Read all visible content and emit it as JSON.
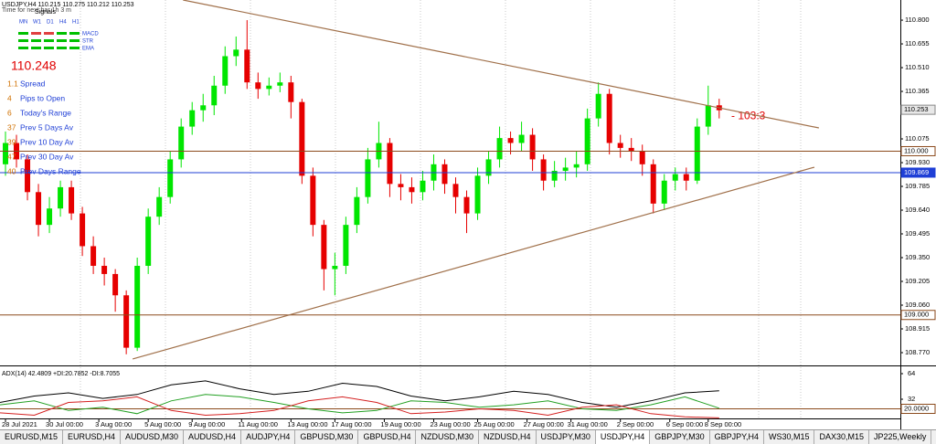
{
  "chart_data": [
    {
      "type": "candlestick",
      "title": "USDJPY,H4 110.215 110.275 110.212 110.253",
      "subtitle": "Time for next bar 1h 3 m",
      "candles": [
        [
          109.92,
          110.12,
          109.85,
          110.05
        ],
        [
          110.05,
          110.1,
          109.9,
          109.95
        ],
        [
          109.95,
          109.98,
          109.7,
          109.75
        ],
        [
          109.75,
          109.8,
          109.48,
          109.55
        ],
        [
          109.55,
          109.72,
          109.5,
          109.65
        ],
        [
          109.65,
          109.82,
          109.6,
          109.78
        ],
        [
          109.78,
          109.82,
          109.58,
          109.62
        ],
        [
          109.62,
          109.66,
          109.36,
          109.42
        ],
        [
          109.42,
          109.48,
          109.25,
          109.3
        ],
        [
          109.3,
          109.35,
          109.18,
          109.25
        ],
        [
          109.25,
          109.28,
          109.02,
          109.12
        ],
        [
          109.12,
          109.15,
          108.76,
          108.8
        ],
        [
          108.8,
          109.35,
          108.78,
          109.3
        ],
        [
          109.3,
          109.65,
          109.25,
          109.6
        ],
        [
          109.6,
          109.78,
          109.55,
          109.72
        ],
        [
          109.72,
          110.0,
          109.68,
          109.95
        ],
        [
          109.95,
          110.2,
          109.9,
          110.15
        ],
        [
          110.15,
          110.3,
          110.1,
          110.25
        ],
        [
          110.25,
          110.35,
          110.18,
          110.28
        ],
        [
          110.28,
          110.46,
          110.22,
          110.4
        ],
        [
          110.4,
          110.64,
          110.35,
          110.58
        ],
        [
          110.58,
          110.7,
          110.52,
          110.62
        ],
        [
          110.62,
          110.8,
          110.38,
          110.42
        ],
        [
          110.42,
          110.48,
          110.32,
          110.38
        ],
        [
          110.38,
          110.45,
          110.34,
          110.4
        ],
        [
          110.4,
          110.48,
          110.36,
          110.42
        ],
        [
          110.42,
          110.46,
          110.2,
          110.3
        ],
        [
          110.3,
          110.32,
          109.8,
          109.85
        ],
        [
          109.85,
          109.9,
          109.48,
          109.55
        ],
        [
          109.55,
          109.58,
          109.15,
          109.28
        ],
        [
          109.28,
          109.38,
          109.12,
          109.3
        ],
        [
          109.3,
          109.6,
          109.25,
          109.55
        ],
        [
          109.55,
          109.78,
          109.5,
          109.72
        ],
        [
          109.72,
          110.02,
          109.68,
          109.95
        ],
        [
          109.95,
          110.18,
          109.9,
          110.05
        ],
        [
          110.05,
          110.08,
          109.72,
          109.8
        ],
        [
          109.8,
          109.86,
          109.7,
          109.78
        ],
        [
          109.78,
          109.84,
          109.68,
          109.75
        ],
        [
          109.75,
          109.88,
          109.7,
          109.82
        ],
        [
          109.82,
          109.98,
          109.76,
          109.92
        ],
        [
          109.92,
          109.95,
          109.74,
          109.8
        ],
        [
          109.8,
          109.84,
          109.62,
          109.72
        ],
        [
          109.72,
          109.76,
          109.5,
          109.62
        ],
        [
          109.62,
          109.9,
          109.58,
          109.85
        ],
        [
          109.85,
          110.0,
          109.8,
          109.95
        ],
        [
          109.95,
          110.15,
          109.9,
          110.08
        ],
        [
          110.08,
          110.12,
          109.98,
          110.05
        ],
        [
          110.05,
          110.18,
          110.0,
          110.1
        ],
        [
          110.1,
          110.14,
          109.88,
          109.95
        ],
        [
          109.95,
          109.98,
          109.76,
          109.82
        ],
        [
          109.82,
          109.94,
          109.78,
          109.88
        ],
        [
          109.88,
          109.96,
          109.82,
          109.9
        ],
        [
          109.9,
          110.0,
          109.84,
          109.92
        ],
        [
          109.92,
          110.26,
          109.88,
          110.2
        ],
        [
          110.2,
          110.42,
          110.15,
          110.35
        ],
        [
          110.35,
          110.38,
          109.98,
          110.05
        ],
        [
          110.05,
          110.1,
          109.96,
          110.02
        ],
        [
          110.02,
          110.08,
          109.94,
          110.0
        ],
        [
          110.0,
          110.04,
          109.85,
          109.92
        ],
        [
          109.92,
          109.95,
          109.62,
          109.68
        ],
        [
          109.68,
          109.86,
          109.64,
          109.82
        ],
        [
          109.82,
          109.9,
          109.76,
          109.86
        ],
        [
          109.86,
          109.9,
          109.76,
          109.82
        ],
        [
          109.82,
          110.2,
          109.8,
          110.15
        ],
        [
          110.15,
          110.4,
          110.1,
          110.28
        ],
        [
          110.28,
          110.32,
          110.2,
          110.25
        ]
      ],
      "up_color": "#00e600",
      "down_color": "#e60000",
      "xlim": [
        -0.5,
        81.5
      ],
      "xticks": [
        {
          "value": 0,
          "label": "28 Jul 2021"
        },
        {
          "value": 4,
          "label": "30 Jul 00:00"
        },
        {
          "value": 8.5,
          "label": "3 Aug 00:00"
        },
        {
          "value": 13,
          "label": "5 Aug 00:00"
        },
        {
          "value": 17,
          "label": "9 Aug 00:00"
        },
        {
          "value": 21.5,
          "label": "11 Aug 00:00"
        },
        {
          "value": 26,
          "label": "13 Aug 00:00"
        },
        {
          "value": 30,
          "label": "17 Aug 00:00"
        },
        {
          "value": 34.5,
          "label": "19 Aug 00:00"
        },
        {
          "value": 39,
          "label": "23 Aug 00:00"
        },
        {
          "value": 43,
          "label": "25 Aug 00:00"
        },
        {
          "value": 47.5,
          "label": "27 Aug 00:00"
        },
        {
          "value": 51.5,
          "label": "31 Aug 00:00"
        },
        {
          "value": 56,
          "label": "2 Sep 00:00"
        },
        {
          "value": 60.5,
          "label": "6 Sep 00:00"
        },
        {
          "value": 64,
          "label": "8 Sep 00:00"
        }
      ],
      "ylim": [
        108.703,
        110.923
      ],
      "yticks": [
        {
          "value": 110.8,
          "label": "110.800"
        },
        110.655,
        {
          "value": 110.51,
          "label": "110.510"
        },
        110.365,
        110.075,
        {
          "value": 109.93,
          "label": "109.930"
        },
        109.785,
        {
          "value": 109.64,
          "label": "109.640"
        },
        109.495,
        {
          "value": 109.35,
          "label": "109.350"
        },
        109.205,
        {
          "value": 109.06,
          "label": "109.060"
        },
        108.915,
        {
          "value": 108.77,
          "label": "108.770"
        }
      ],
      "levels": [
        {
          "value": 110,
          "label": "110.000",
          "color": "#8b4a1c"
        },
        {
          "value": 109.869,
          "label": "109.869",
          "color": "#1f3fd6"
        },
        {
          "value": 109,
          "label": "109.000",
          "color": "#8b4a1c"
        }
      ],
      "current_price": {
        "value": 110.253,
        "label": "110.253"
      },
      "trendlines": [
        [
          16.17,
          110.923,
          74.08,
          110.142
        ],
        [
          11.58,
          108.731,
          73.67,
          109.902
        ]
      ],
      "trendline_color": "#a0704a",
      "annotation": "- 103:3"
    },
    {
      "type": "line",
      "title": "ADX(14) 42.4809 +DI:20.7852 -DI:8.7055",
      "series": [
        {
          "name": "ADX",
          "color": "#000000",
          "values": [
            28,
            36,
            40,
            33,
            38,
            50,
            55,
            45,
            38,
            42,
            52,
            48,
            36,
            30,
            35,
            42,
            38,
            28,
            22,
            30,
            40,
            42.4809
          ]
        },
        {
          "name": "+DI",
          "color": "#22a022",
          "values": [
            25,
            30,
            18,
            22,
            14,
            30,
            38,
            35,
            28,
            20,
            15,
            18,
            30,
            28,
            22,
            25,
            30,
            20,
            18,
            25,
            35,
            20.7852
          ]
        },
        {
          "name": "-DI",
          "color": "#d42020",
          "values": [
            15,
            12,
            28,
            30,
            35,
            18,
            12,
            14,
            18,
            30,
            35,
            28,
            14,
            16,
            20,
            18,
            12,
            22,
            25,
            14,
            10,
            8.7055
          ]
        }
      ],
      "ylim": [
        8,
        72
      ],
      "yticks": [
        64,
        32,
        16
      ],
      "level": {
        "value": 20,
        "label": "20.0000",
        "color": "#8b4a1c"
      }
    }
  ],
  "signals": {
    "title": "Signals",
    "columns": [
      "MN",
      "W1",
      "D1",
      "H4",
      "H1"
    ],
    "rows": [
      "MACD",
      "STR",
      "EMA"
    ]
  },
  "price": "110.248",
  "info": [
    {
      "value": "1.1",
      "label": "Spread"
    },
    {
      "value": "4",
      "label": "Pips to Open"
    },
    {
      "value": "6",
      "label": "Today's Range"
    },
    {
      "value": "37",
      "label": "Prev 5 Days Av"
    },
    {
      "value": "39",
      "label": "Prev 10 Day Av"
    },
    {
      "value": "47",
      "label": "Prev 30 Day Av"
    },
    {
      "value": "40",
      "label": "Prev Days Range"
    }
  ],
  "tabs": [
    "EURUSD,M15",
    "EURUSD,H4",
    "AUDUSD,M30",
    "AUDUSD,H4",
    "AUDJPY,H4",
    "GBPUSD,M30",
    "GBPUSD,H4",
    "NZDUSD,M30",
    "NZDUSD,H4",
    "USDJPY,M30",
    "USDJPY,H4",
    "GBPJPY,M30",
    "GBPJPY,H4",
    "WS30,M15",
    "DAX30,M15",
    "JP225,Weekly"
  ],
  "active_tab": 10
}
